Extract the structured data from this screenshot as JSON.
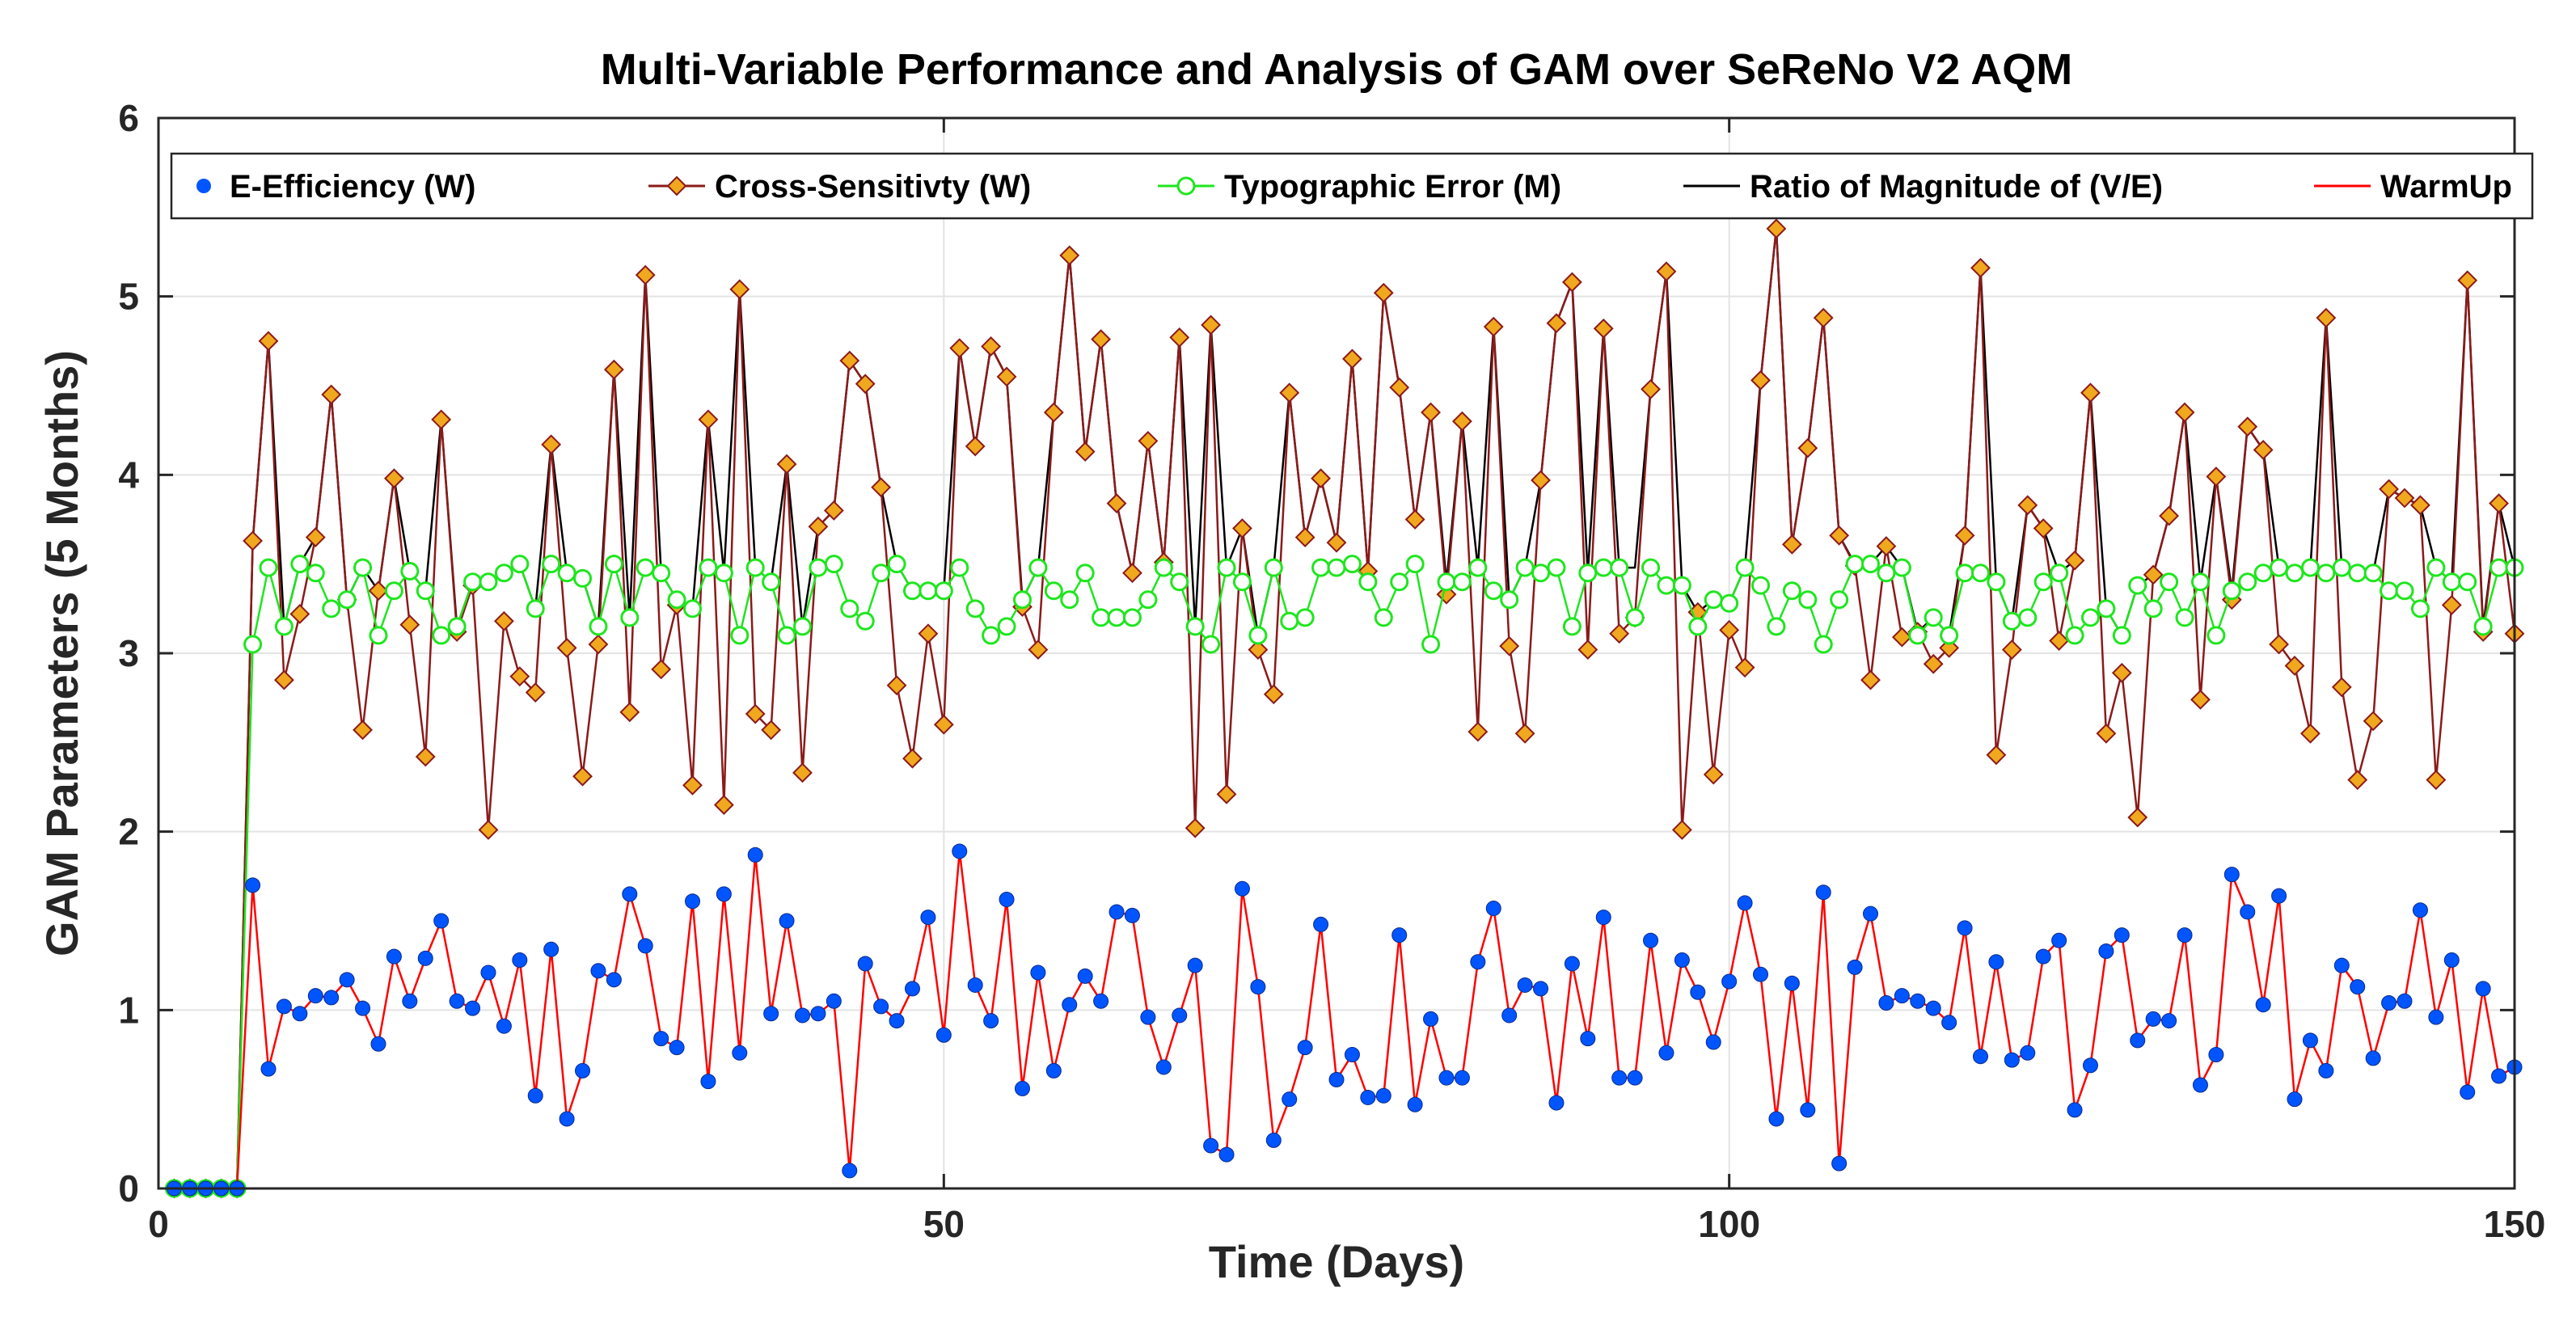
{
  "chart_data": {
    "type": "line",
    "title": "Multi-Variable Performance and Analysis of GAM over SeReNo V2 AQM",
    "xlabel": "Time (Days)",
    "ylabel": "GAM Parameters (5 Months)",
    "xlim": [
      0,
      150
    ],
    "ylim": [
      0,
      6
    ],
    "xticks": [
      0,
      50,
      100,
      150
    ],
    "yticks": [
      0,
      1,
      2,
      3,
      4,
      5,
      6
    ],
    "grid": true,
    "legend_position": "top",
    "x": [
      1,
      2,
      3,
      4,
      5,
      6,
      7,
      8,
      9,
      10,
      11,
      12,
      13,
      14,
      15,
      16,
      17,
      18,
      19,
      20,
      21,
      22,
      23,
      24,
      25,
      26,
      27,
      28,
      29,
      30,
      31,
      32,
      33,
      34,
      35,
      36,
      37,
      38,
      39,
      40,
      41,
      42,
      43,
      44,
      45,
      46,
      47,
      48,
      49,
      50,
      51,
      52,
      53,
      54,
      55,
      56,
      57,
      58,
      59,
      60,
      61,
      62,
      63,
      64,
      65,
      66,
      67,
      68,
      69,
      70,
      71,
      72,
      73,
      74,
      75,
      76,
      77,
      78,
      79,
      80,
      81,
      82,
      83,
      84,
      85,
      86,
      87,
      88,
      89,
      90,
      91,
      92,
      93,
      94,
      95,
      96,
      97,
      98,
      99,
      100,
      101,
      102,
      103,
      104,
      105,
      106,
      107,
      108,
      109,
      110,
      111,
      112,
      113,
      114,
      115,
      116,
      117,
      118,
      119,
      120,
      121,
      122,
      123,
      124,
      125,
      126,
      127,
      128,
      129,
      130,
      131,
      132,
      133,
      134,
      135,
      136,
      137,
      138,
      139,
      140,
      141,
      142,
      143,
      144,
      145,
      146,
      147,
      148,
      149,
      150
    ],
    "series": [
      {
        "name": "E-Efficiency (W)",
        "style": "markers",
        "color": "#0055ff",
        "values": [
          0,
          0,
          0,
          0,
          0,
          1.7,
          0.67,
          1.02,
          0.98,
          1.08,
          1.07,
          1.17,
          1.01,
          0.81,
          1.3,
          1.05,
          1.29,
          1.5,
          1.05,
          1.01,
          1.21,
          0.91,
          1.28,
          0.52,
          1.34,
          0.39,
          0.66,
          1.22,
          1.17,
          1.65,
          1.36,
          0.84,
          0.79,
          1.61,
          0.6,
          1.65,
          0.76,
          1.87,
          0.98,
          1.5,
          0.97,
          0.98,
          1.05,
          0.1,
          1.26,
          1.02,
          0.94,
          1.12,
          1.52,
          0.86,
          1.89,
          1.14,
          0.94,
          1.62,
          0.56,
          1.21,
          0.66,
          1.03,
          1.19,
          1.05,
          1.55,
          1.53,
          0.96,
          0.68,
          0.97,
          1.25,
          0.24,
          0.19,
          1.68,
          1.13,
          0.27,
          0.5,
          0.79,
          1.48,
          0.61,
          0.75,
          0.51,
          0.52,
          1.42,
          0.47,
          0.95,
          0.62,
          0.62,
          1.27,
          1.57,
          0.97,
          1.14,
          1.12,
          0.48,
          1.26,
          0.84,
          1.52,
          0.62,
          0.62,
          1.39,
          0.76,
          1.28,
          1.1,
          0.82,
          1.16,
          1.6,
          1.2,
          0.39,
          1.15,
          0.44,
          1.66,
          0.14,
          1.24,
          1.54,
          1.04,
          1.08,
          1.05,
          1.01,
          0.93,
          1.46,
          0.74,
          1.27,
          0.72,
          0.76,
          1.3,
          1.39,
          0.44,
          0.69,
          1.33,
          1.42,
          0.83,
          0.95,
          0.94,
          1.42,
          0.58,
          0.75,
          1.76,
          1.55,
          1.03,
          1.64,
          0.5,
          0.83,
          0.66,
          1.25,
          1.13,
          0.73,
          1.04,
          1.05,
          1.56,
          0.96,
          1.28,
          0.54,
          1.12,
          0.63,
          0.68
        ]
      },
      {
        "name": "Cross-Sensitivty (W)",
        "style": "line+diamond",
        "color": "#8b1a1a",
        "marker_fill": "#f0a81e",
        "values": [
          0,
          0,
          0,
          0,
          0,
          3.63,
          4.75,
          2.85,
          3.22,
          3.65,
          4.45,
          3.3,
          2.57,
          3.35,
          3.98,
          3.16,
          2.42,
          4.31,
          3.12,
          3.38,
          2.01,
          3.18,
          2.87,
          2.78,
          4.17,
          3.03,
          2.31,
          3.05,
          4.59,
          2.67,
          5.12,
          2.91,
          3.27,
          2.26,
          4.31,
          2.15,
          5.04,
          2.66,
          2.57,
          4.06,
          2.33,
          3.71,
          3.8,
          4.64,
          4.51,
          3.93,
          2.82,
          2.41,
          3.11,
          2.6,
          4.71,
          4.16,
          4.72,
          4.55,
          3.26,
          3.02,
          4.35,
          5.23,
          4.13,
          4.76,
          3.84,
          3.45,
          4.19,
          3.51,
          4.77,
          2.02,
          4.84,
          2.21,
          3.7,
          3.02,
          2.77,
          4.46,
          3.65,
          3.98,
          3.62,
          4.65,
          3.46,
          5.02,
          4.49,
          3.75,
          4.35,
          3.33,
          4.3,
          2.56,
          4.83,
          3.04,
          2.55,
          3.97,
          4.85,
          5.08,
          3.02,
          4.82,
          3.11,
          3.2,
          4.48,
          5.14,
          2.01,
          3.23,
          2.32,
          3.13,
          2.92,
          4.53,
          5.38,
          3.61,
          4.15,
          4.88,
          3.66,
          3.49,
          2.85,
          3.6,
          3.09,
          3.12,
          2.94,
          3.03,
          3.66,
          5.16,
          2.43,
          3.02,
          3.83,
          3.7,
          3.07,
          3.52,
          4.46,
          2.55,
          2.89,
          2.08,
          3.44,
          3.77,
          4.35,
          2.74,
          3.99,
          3.3,
          4.27,
          4.14,
          3.05,
          2.93,
          2.55,
          4.88,
          2.81,
          2.29,
          2.62,
          3.92,
          3.87,
          3.83,
          2.29,
          3.27,
          5.09,
          3.12,
          3.84,
          3.11
        ]
      },
      {
        "name": "Typographic Error (M)",
        "style": "line+circle",
        "color": "#1ee61e",
        "values": [
          0,
          0,
          0,
          0,
          0,
          3.05,
          3.48,
          3.15,
          3.5,
          3.45,
          3.25,
          3.3,
          3.48,
          3.1,
          3.35,
          3.46,
          3.35,
          3.1,
          3.15,
          3.4,
          3.4,
          3.45,
          3.5,
          3.25,
          3.5,
          3.45,
          3.42,
          3.15,
          3.5,
          3.2,
          3.48,
          3.45,
          3.3,
          3.25,
          3.48,
          3.45,
          3.1,
          3.48,
          3.4,
          3.1,
          3.15,
          3.48,
          3.5,
          3.25,
          3.18,
          3.45,
          3.5,
          3.35,
          3.35,
          3.35,
          3.48,
          3.25,
          3.1,
          3.15,
          3.3,
          3.48,
          3.35,
          3.3,
          3.45,
          3.2,
          3.2,
          3.2,
          3.3,
          3.48,
          3.4,
          3.15,
          3.05,
          3.48,
          3.4,
          3.1,
          3.48,
          3.18,
          3.2,
          3.48,
          3.48,
          3.5,
          3.4,
          3.2,
          3.4,
          3.5,
          3.05,
          3.4,
          3.4,
          3.48,
          3.35,
          3.3,
          3.48,
          3.45,
          3.48,
          3.15,
          3.45,
          3.48,
          3.48,
          3.2,
          3.48,
          3.38,
          3.38,
          3.15,
          3.3,
          3.28,
          3.48,
          3.38,
          3.15,
          3.35,
          3.3,
          3.05,
          3.3,
          3.5,
          3.5,
          3.45,
          3.48,
          3.1,
          3.2,
          3.1,
          3.45,
          3.45,
          3.4,
          3.18,
          3.2,
          3.4,
          3.45,
          3.1,
          3.2,
          3.25,
          3.1,
          3.38,
          3.25,
          3.4,
          3.2,
          3.4,
          3.1,
          3.35,
          3.4,
          3.45,
          3.48,
          3.45,
          3.48,
          3.45,
          3.48,
          3.45,
          3.45,
          3.35,
          3.35,
          3.25,
          3.48,
          3.4,
          3.4,
          3.15,
          3.48,
          3.48
        ]
      },
      {
        "name": "Ratio of Magnitude of (V/E)",
        "style": "line",
        "color": "#000000",
        "values": [
          0,
          0,
          0,
          0,
          0,
          3.63,
          4.75,
          3.15,
          3.5,
          3.65,
          4.45,
          3.3,
          3.48,
          3.35,
          3.98,
          3.46,
          3.35,
          4.31,
          3.15,
          3.4,
          3.4,
          3.45,
          3.5,
          3.25,
          4.17,
          3.45,
          3.42,
          3.15,
          4.59,
          3.2,
          5.12,
          3.45,
          3.3,
          3.25,
          4.31,
          3.45,
          5.04,
          3.48,
          3.4,
          4.06,
          3.15,
          3.71,
          3.8,
          4.64,
          4.51,
          3.93,
          3.5,
          3.35,
          3.35,
          3.35,
          4.71,
          4.16,
          4.72,
          4.55,
          3.3,
          3.48,
          4.35,
          5.23,
          4.13,
          4.76,
          3.84,
          3.45,
          4.19,
          3.51,
          4.77,
          3.15,
          4.84,
          3.48,
          3.7,
          3.1,
          3.48,
          4.46,
          3.65,
          3.98,
          3.62,
          4.65,
          3.46,
          5.02,
          4.49,
          3.75,
          4.35,
          3.4,
          4.3,
          3.48,
          4.83,
          3.3,
          3.48,
          3.97,
          4.85,
          5.08,
          3.45,
          4.82,
          3.48,
          3.48,
          4.48,
          5.14,
          3.38,
          3.23,
          3.3,
          3.28,
          3.48,
          4.53,
          5.38,
          3.61,
          4.15,
          4.88,
          3.66,
          3.5,
          3.5,
          3.6,
          3.48,
          3.12,
          3.2,
          3.1,
          3.66,
          5.16,
          3.4,
          3.18,
          3.83,
          3.7,
          3.45,
          3.52,
          4.46,
          3.25,
          3.1,
          3.38,
          3.44,
          3.77,
          4.35,
          3.4,
          3.99,
          3.35,
          4.27,
          4.14,
          3.48,
          3.45,
          3.48,
          4.88,
          3.48,
          3.45,
          3.45,
          3.92,
          3.87,
          3.83,
          3.48,
          3.4,
          5.09,
          3.15,
          3.84,
          3.48
        ]
      },
      {
        "name": "WarmUp",
        "style": "line",
        "color": "#ff0000",
        "values": [
          0,
          0,
          0,
          0,
          0,
          1.7,
          0.67,
          1.02,
          0.98,
          1.08,
          1.07,
          1.17,
          1.01,
          0.81,
          1.3,
          1.05,
          1.29,
          1.5,
          1.05,
          1.01,
          1.21,
          0.91,
          1.28,
          0.52,
          1.34,
          0.39,
          0.66,
          1.22,
          1.17,
          1.65,
          1.36,
          0.84,
          0.79,
          1.61,
          0.6,
          1.65,
          0.76,
          1.87,
          0.98,
          1.5,
          0.97,
          0.98,
          1.05,
          0.1,
          1.26,
          1.02,
          0.94,
          1.12,
          1.52,
          0.86,
          1.89,
          1.14,
          0.94,
          1.62,
          0.56,
          1.21,
          0.66,
          1.03,
          1.19,
          1.05,
          1.55,
          1.53,
          0.96,
          0.68,
          0.97,
          1.25,
          0.24,
          0.19,
          1.68,
          1.13,
          0.27,
          0.5,
          0.79,
          1.48,
          0.61,
          0.75,
          0.51,
          0.52,
          1.42,
          0.47,
          0.95,
          0.62,
          0.62,
          1.27,
          1.57,
          0.97,
          1.14,
          1.12,
          0.48,
          1.26,
          0.84,
          1.52,
          0.62,
          0.62,
          1.39,
          0.76,
          1.28,
          1.1,
          0.82,
          1.16,
          1.6,
          1.2,
          0.39,
          1.15,
          0.44,
          1.66,
          0.14,
          1.24,
          1.54,
          1.04,
          1.08,
          1.05,
          1.01,
          0.93,
          1.46,
          0.74,
          1.27,
          0.72,
          0.76,
          1.3,
          1.39,
          0.44,
          0.69,
          1.33,
          1.42,
          0.83,
          0.95,
          0.94,
          1.42,
          0.58,
          0.75,
          1.76,
          1.55,
          1.03,
          1.64,
          0.5,
          0.83,
          0.66,
          1.25,
          1.13,
          0.73,
          1.04,
          1.05,
          1.56,
          0.96,
          1.28,
          0.54,
          1.12,
          0.63,
          0.68
        ]
      }
    ]
  }
}
